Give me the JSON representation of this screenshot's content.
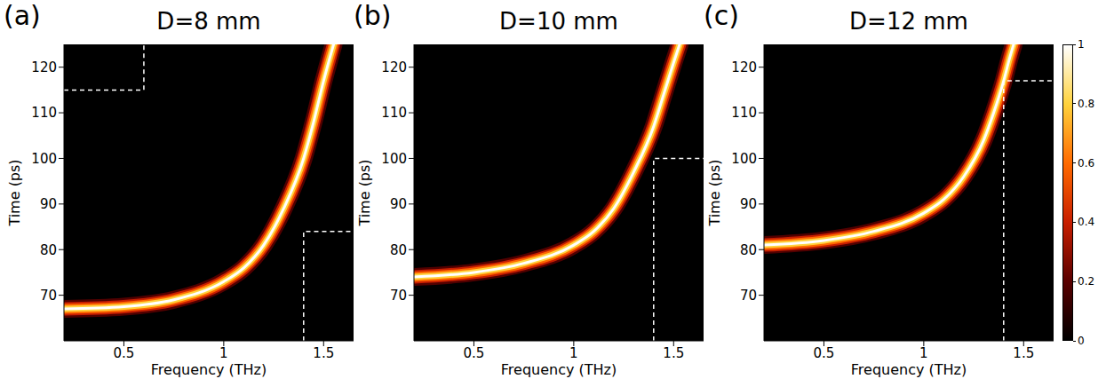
{
  "chart_data": [
    {
      "type": "line",
      "panel": "(a)",
      "title": "D=8 mm",
      "x_label": "Frequency (THz)",
      "y_label": "Time (ps)",
      "xlim": [
        0.2,
        1.65
      ],
      "ylim": [
        60,
        125
      ],
      "xticks": [
        0.5,
        1,
        1.5
      ],
      "yticks": [
        70,
        80,
        90,
        100,
        110,
        120
      ],
      "grid": false,
      "series": [
        {
          "color": "#ffffff",
          "x": [
            0.2,
            0.5,
            0.75,
            1.0,
            1.1,
            1.2,
            1.3,
            1.4,
            1.45,
            1.5,
            1.55
          ],
          "values": [
            67,
            67.5,
            69,
            73,
            76,
            81,
            89,
            100,
            108,
            117,
            125
          ]
        },
        {
          "color": "#ffffff",
          "line_style": "dashed",
          "x": [
            0.2,
            0.6,
            0.6
          ],
          "values": [
            115,
            115,
            125
          ]
        },
        {
          "color": "#ffffff",
          "line_style": "dashed",
          "x": [
            1.4,
            1.4,
            1.65
          ],
          "values": [
            60,
            84,
            84
          ]
        }
      ]
    },
    {
      "type": "line",
      "panel": "(b)",
      "title": "D=10 mm",
      "x_label": "Frequency (THz)",
      "y_label": "Time (ps)",
      "xlim": [
        0.2,
        1.65
      ],
      "ylim": [
        60,
        125
      ],
      "xticks": [
        0.5,
        1,
        1.5
      ],
      "yticks": [
        70,
        80,
        90,
        100,
        110,
        120
      ],
      "grid": false,
      "series": [
        {
          "color": "#ffffff",
          "x": [
            0.2,
            0.5,
            0.75,
            1.0,
            1.1,
            1.2,
            1.3,
            1.4,
            1.45,
            1.5,
            1.53
          ],
          "values": [
            74,
            75,
            77,
            81,
            84,
            89,
            97,
            107,
            114,
            121,
            125
          ]
        },
        {
          "color": "#ffffff",
          "line_style": "dashed",
          "x": [
            1.4,
            1.4,
            1.65
          ],
          "values": [
            60,
            100,
            100
          ]
        }
      ]
    },
    {
      "type": "line",
      "panel": "(c)",
      "title": "D=12 mm",
      "x_label": "Frequency (THz)",
      "y_label": "Time (ps)",
      "xlim": [
        0.2,
        1.65
      ],
      "ylim": [
        60,
        125
      ],
      "xticks": [
        0.5,
        1,
        1.5
      ],
      "yticks": [
        70,
        80,
        90,
        100,
        110,
        120
      ],
      "grid": false,
      "series": [
        {
          "color": "#ffffff",
          "x": [
            0.2,
            0.5,
            0.75,
            1.0,
            1.1,
            1.2,
            1.3,
            1.35,
            1.4,
            1.43,
            1.45
          ],
          "values": [
            81,
            82,
            84,
            88,
            91,
            96,
            104,
            110,
            117,
            122,
            125
          ]
        },
        {
          "color": "#ffffff",
          "line_style": "dashed",
          "x": [
            1.4,
            1.4,
            1.65
          ],
          "values": [
            60,
            117,
            117
          ]
        }
      ]
    }
  ],
  "colorbar": {
    "range": [
      0,
      1
    ],
    "ticks": [
      0,
      0.2,
      0.4,
      0.6,
      0.8,
      1
    ],
    "colors": [
      "#000000",
      "#5a0000",
      "#c81e00",
      "#ff6a00",
      "#ffd23c",
      "#ffffff"
    ]
  }
}
